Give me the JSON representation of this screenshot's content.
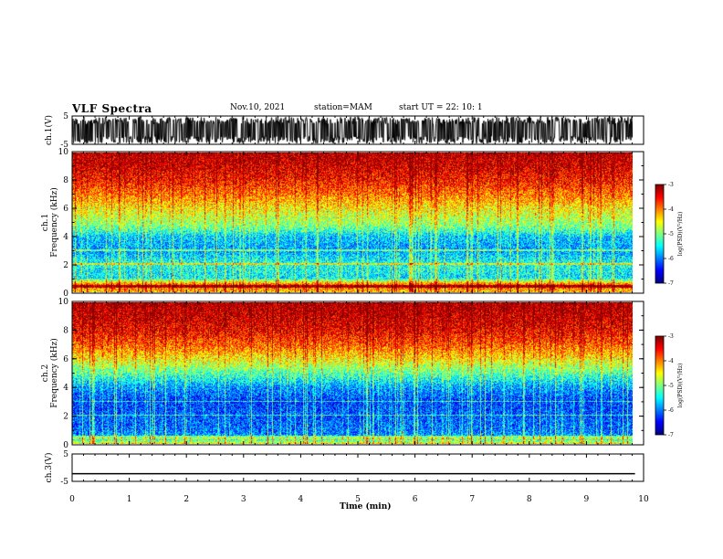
{
  "header": {
    "title": "VLF Spectra",
    "date": "Nov.10, 2021",
    "station": "station=MAM",
    "start": "start  UT  =   22: 10: 1"
  },
  "chart_data": {
    "type": "heatmap",
    "title": "VLF Spectra",
    "xlabel": "Time  (min)",
    "xlim": [
      0,
      10
    ],
    "x_ticks": [
      "0",
      "1",
      "2",
      "3",
      "4",
      "5",
      "6",
      "7",
      "8",
      "9",
      "10"
    ],
    "data_end_min": 9.85,
    "panels": [
      {
        "id": "ch1-waveform",
        "type": "line",
        "ylabel": "ch.1(V)",
        "ylim": [
          -5,
          5
        ],
        "y_ticks": [
          "5",
          "-5"
        ],
        "description_level": "dense noise filling about -3 to +3 V"
      },
      {
        "id": "ch1-spectrogram",
        "type": "heatmap",
        "ylabel": "ch.1\nFrequency  (kHz)",
        "ylim": [
          0,
          10
        ],
        "y_ticks": [
          "0",
          "2",
          "4",
          "6",
          "8",
          "10"
        ],
        "colorbar": {
          "label": "log(PSD)(V²/Hz)",
          "range": [
            -7,
            -3
          ],
          "ticks": [
            "-3",
            "-4",
            "-5",
            "-6",
            "-7"
          ]
        },
        "profile_freq_khz": [
          0,
          0.5,
          1,
          2,
          3,
          4,
          4.5,
          5,
          6,
          7,
          8,
          9,
          10
        ],
        "profile_logpsd": [
          -4.3,
          -3.8,
          -5.6,
          -5.4,
          -5.9,
          -5.7,
          -5.2,
          -4.9,
          -4.5,
          -4.0,
          -3.6,
          -3.35,
          -3.2
        ]
      },
      {
        "id": "ch2-spectrogram",
        "type": "heatmap",
        "ylabel": "ch.2\nFrequency  (kHz)",
        "ylim": [
          0,
          10
        ],
        "y_ticks": [
          "0",
          "2",
          "4",
          "6",
          "8",
          "10"
        ],
        "colorbar": {
          "label": "log(PSD)(V²/Hz)",
          "range": [
            -7,
            -3
          ],
          "ticks": [
            "-3",
            "-4",
            "-5",
            "-6",
            "-7"
          ]
        },
        "profile_freq_khz": [
          0,
          0.5,
          1,
          2,
          3,
          4,
          5,
          6,
          7,
          8,
          9,
          10
        ],
        "profile_logpsd": [
          -4.6,
          -5.9,
          -6.1,
          -6.2,
          -6.3,
          -5.9,
          -5.2,
          -4.5,
          -3.9,
          -3.5,
          -3.3,
          -3.15
        ]
      },
      {
        "id": "ch3-waveform",
        "type": "line",
        "ylabel": "ch.3(V)",
        "ylim": [
          -5,
          5
        ],
        "y_ticks": [
          "5",
          "-5"
        ],
        "constant_value": -2.2
      }
    ]
  }
}
